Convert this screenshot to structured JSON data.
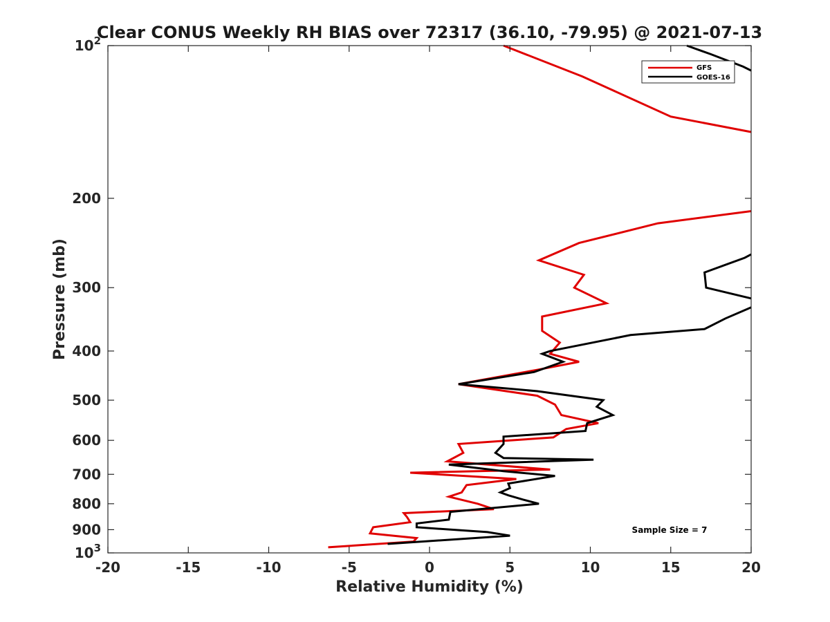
{
  "chart_data": {
    "type": "line",
    "title": "Clear CONUS Weekly RH BIAS over 72317 (36.10, -79.95) @ 2021-07-13",
    "xlabel": "Relative Humidity (%)",
    "ylabel": "Pressure (mb)",
    "xlim": [
      -20,
      20
    ],
    "ylim": [
      100,
      1000
    ],
    "y_scale": "log",
    "y_reversed": true,
    "grid": false,
    "legend_position": "top-right",
    "x_ticks": [
      "-20",
      "-15",
      "-10",
      "-5",
      "0",
      "5",
      "10",
      "15",
      "20"
    ],
    "y_ticks": [
      {
        "value": 100,
        "base": "10",
        "exp": "2"
      },
      {
        "value": 200,
        "label": "200"
      },
      {
        "value": 300,
        "label": "300"
      },
      {
        "value": 400,
        "label": "400"
      },
      {
        "value": 500,
        "label": "500"
      },
      {
        "value": 600,
        "label": "600"
      },
      {
        "value": 700,
        "label": "700"
      },
      {
        "value": 800,
        "label": "800"
      },
      {
        "value": 900,
        "label": "900"
      },
      {
        "value": 1000,
        "base": "10",
        "exp": "3"
      }
    ],
    "series": [
      {
        "name": "GFS",
        "color": "#e00000",
        "points": [
          [
            4.6,
            100
          ],
          [
            9.5,
            115
          ],
          [
            15.0,
            138
          ],
          [
            20.0,
            148
          ],
          [
            null,
            null
          ],
          [
            20.0,
            212
          ],
          [
            14.2,
            224
          ],
          [
            9.3,
            245
          ],
          [
            6.8,
            265
          ],
          [
            9.6,
            283
          ],
          [
            9.0,
            300
          ],
          [
            11.0,
            322
          ],
          [
            7.0,
            342
          ],
          [
            7.0,
            365
          ],
          [
            8.1,
            385
          ],
          [
            7.5,
            405
          ],
          [
            9.3,
            420
          ],
          [
            6.8,
            435
          ],
          [
            1.8,
            465
          ],
          [
            6.7,
            490
          ],
          [
            7.8,
            510
          ],
          [
            8.2,
            535
          ],
          [
            10.5,
            555
          ],
          [
            8.5,
            570
          ],
          [
            7.7,
            592
          ],
          [
            1.8,
            610
          ],
          [
            2.1,
            635
          ],
          [
            1.1,
            660
          ],
          [
            7.5,
            685
          ],
          [
            -1.2,
            695
          ],
          [
            5.4,
            715
          ],
          [
            2.3,
            735
          ],
          [
            2.0,
            760
          ],
          [
            1.2,
            775
          ],
          [
            3.0,
            800
          ],
          [
            4.0,
            820
          ],
          [
            -1.6,
            835
          ],
          [
            -1.4,
            850
          ],
          [
            -1.2,
            870
          ],
          [
            -3.5,
            890
          ],
          [
            -3.7,
            915
          ],
          [
            -0.8,
            935
          ],
          [
            -1.0,
            950
          ],
          [
            -6.3,
            975
          ]
        ]
      },
      {
        "name": "GOES-16",
        "color": "#000000",
        "points": [
          [
            16.0,
            100
          ],
          [
            17.5,
            104
          ],
          [
            19.5,
            110
          ],
          [
            20.0,
            112
          ],
          [
            null,
            null
          ],
          [
            20.0,
            258
          ],
          [
            19.6,
            262
          ],
          [
            17.1,
            280
          ],
          [
            17.2,
            300
          ],
          [
            20.0,
            315
          ],
          [
            null,
            null
          ],
          [
            20.0,
            328
          ],
          [
            18.4,
            345
          ],
          [
            17.1,
            362
          ],
          [
            12.5,
            372
          ],
          [
            7.5,
            400
          ],
          [
            7.0,
            405
          ],
          [
            8.3,
            420
          ],
          [
            6.5,
            440
          ],
          [
            1.8,
            465
          ],
          [
            6.7,
            480
          ],
          [
            10.8,
            500
          ],
          [
            10.4,
            515
          ],
          [
            11.4,
            535
          ],
          [
            9.8,
            555
          ],
          [
            9.7,
            575
          ],
          [
            4.6,
            590
          ],
          [
            4.6,
            610
          ],
          [
            4.1,
            635
          ],
          [
            4.6,
            650
          ],
          [
            10.2,
            655
          ],
          [
            1.2,
            670
          ],
          [
            4.6,
            690
          ],
          [
            7.8,
            705
          ],
          [
            4.9,
            730
          ],
          [
            5.0,
            745
          ],
          [
            4.4,
            760
          ],
          [
            4.9,
            770
          ],
          [
            5.8,
            785
          ],
          [
            6.8,
            800
          ],
          [
            1.3,
            830
          ],
          [
            1.2,
            860
          ],
          [
            -0.8,
            875
          ],
          [
            -0.8,
            890
          ],
          [
            3.6,
            910
          ],
          [
            5.0,
            925
          ],
          [
            -2.6,
            960
          ]
        ]
      }
    ],
    "annotation": "Sample Size = 7"
  }
}
